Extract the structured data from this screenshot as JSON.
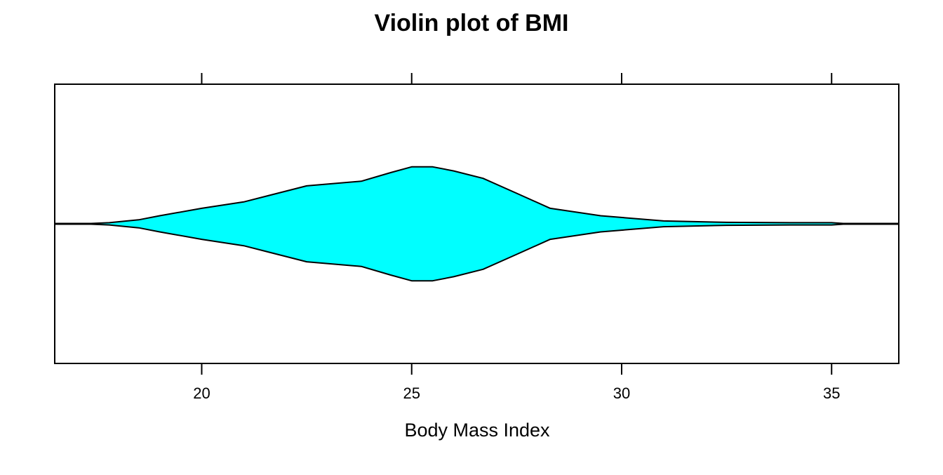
{
  "chart_data": {
    "type": "violin",
    "title": "Violin plot of BMI",
    "xlabel": "Body Mass Index",
    "ylabel": "",
    "xlim": [
      16.5,
      36.6
    ],
    "xticks": [
      20,
      25,
      30,
      35
    ],
    "xtick_labels": [
      "20",
      "25",
      "30",
      "35"
    ],
    "colors": {
      "fill": "#00ffff",
      "stroke": "#000000"
    },
    "density": {
      "x": [
        17.2,
        17.8,
        18.5,
        19.0,
        20.0,
        21.0,
        22.5,
        23.8,
        24.5,
        25.0,
        25.5,
        26.0,
        26.7,
        27.5,
        28.3,
        29.5,
        31.0,
        32.5,
        34.0,
        35.0,
        35.4
      ],
      "relative_density": [
        0.0,
        0.02,
        0.07,
        0.14,
        0.27,
        0.38,
        0.66,
        0.74,
        0.89,
        0.99,
        0.99,
        0.92,
        0.79,
        0.53,
        0.27,
        0.14,
        0.05,
        0.025,
        0.02,
        0.02,
        0.0
      ]
    },
    "grid": false,
    "legend": "none"
  }
}
